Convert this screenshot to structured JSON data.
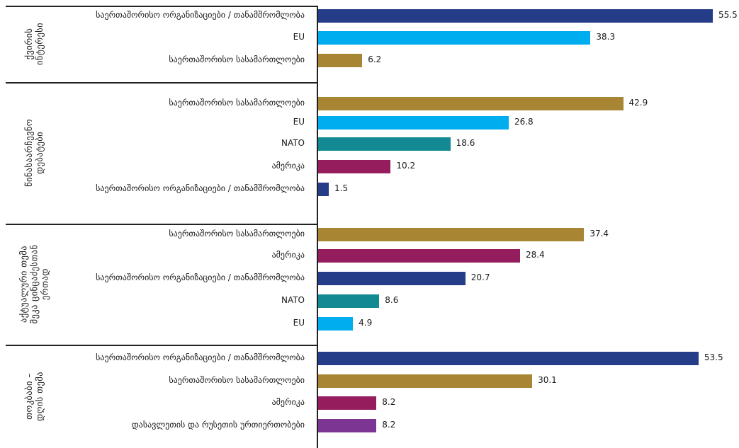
{
  "chart_data": {
    "type": "bar",
    "orientation": "horizontal",
    "xlim": [
      0,
      55.5
    ],
    "groups": [
      {
        "title_lines": [
          "ქვირის",
          "ინტერესი"
        ],
        "bars": [
          {
            "label": "საერთაშორისო ორგანიზაციები / თანამშრომლობა",
            "value": 55.5,
            "value_text": "55.5",
            "color": "#253C88"
          },
          {
            "label": "EU",
            "value": 38.3,
            "value_text": "38.3",
            "color": "#00AEEF"
          },
          {
            "label": "საერთაშორისო სასამართლოები",
            "value": 6.2,
            "value_text": "6.2",
            "color": "#A88532"
          }
        ]
      },
      {
        "title_lines": [
          "წინასაარჩევნო",
          "დებატები"
        ],
        "bars": [
          {
            "label": "საერთაშორისო სასამართლოები",
            "value": 42.9,
            "value_text": "42.9",
            "color": "#A88532"
          },
          {
            "label": "EU",
            "value": 26.8,
            "value_text": "26.8",
            "color": "#00AEEF"
          },
          {
            "label": "NATO",
            "value": 18.6,
            "value_text": "18.6",
            "color": "#138A93"
          },
          {
            "label": "ამერიკა",
            "value": 10.2,
            "value_text": "10.2",
            "color": "#951D5E"
          },
          {
            "label": "საერთაშორისო ორგანიზაციები / თანამშრომლობა",
            "value": 1.5,
            "value_text": "1.5",
            "color": "#253C88"
          }
        ]
      },
      {
        "title_lines": [
          "აქტუალური თემა",
          "მეკა ცინცაძესთან",
          "ერთად"
        ],
        "bars": [
          {
            "label": "საერთაშორისო სასამართლოები",
            "value": 37.4,
            "value_text": "37.4",
            "color": "#A88532"
          },
          {
            "label": "ამერიკა",
            "value": 28.4,
            "value_text": "28.4",
            "color": "#951D5E"
          },
          {
            "label": "საერთაშორისო ორგანიზაციები / თანამშრომლობა",
            "value": 20.7,
            "value_text": "20.7",
            "color": "#253C88"
          },
          {
            "label": "NATO",
            "value": 8.6,
            "value_text": "8.6",
            "color": "#138A93"
          },
          {
            "label": "EU",
            "value": 4.9,
            "value_text": "4.9",
            "color": "#00AEEF"
          }
        ]
      },
      {
        "title_lines": [
          "თოკბაბი –",
          "დღის თემა"
        ],
        "bars": [
          {
            "label": "საერთაშორისო ორგანიზაციები / თანამშრომლობა",
            "value": 53.5,
            "value_text": "53.5",
            "color": "#253C88"
          },
          {
            "label": "საერთაშორისო სასამართლოები",
            "value": 30.1,
            "value_text": "30.1",
            "color": "#A88532"
          },
          {
            "label": "ამერიკა",
            "value": 8.2,
            "value_text": "8.2",
            "color": "#951D5E"
          },
          {
            "label": "დასავლეთის და რუსეთის ურთიერთობები",
            "value": 8.2,
            "value_text": "8.2",
            "color": "#7C3592"
          }
        ]
      }
    ],
    "grid": false,
    "legend": "none"
  }
}
